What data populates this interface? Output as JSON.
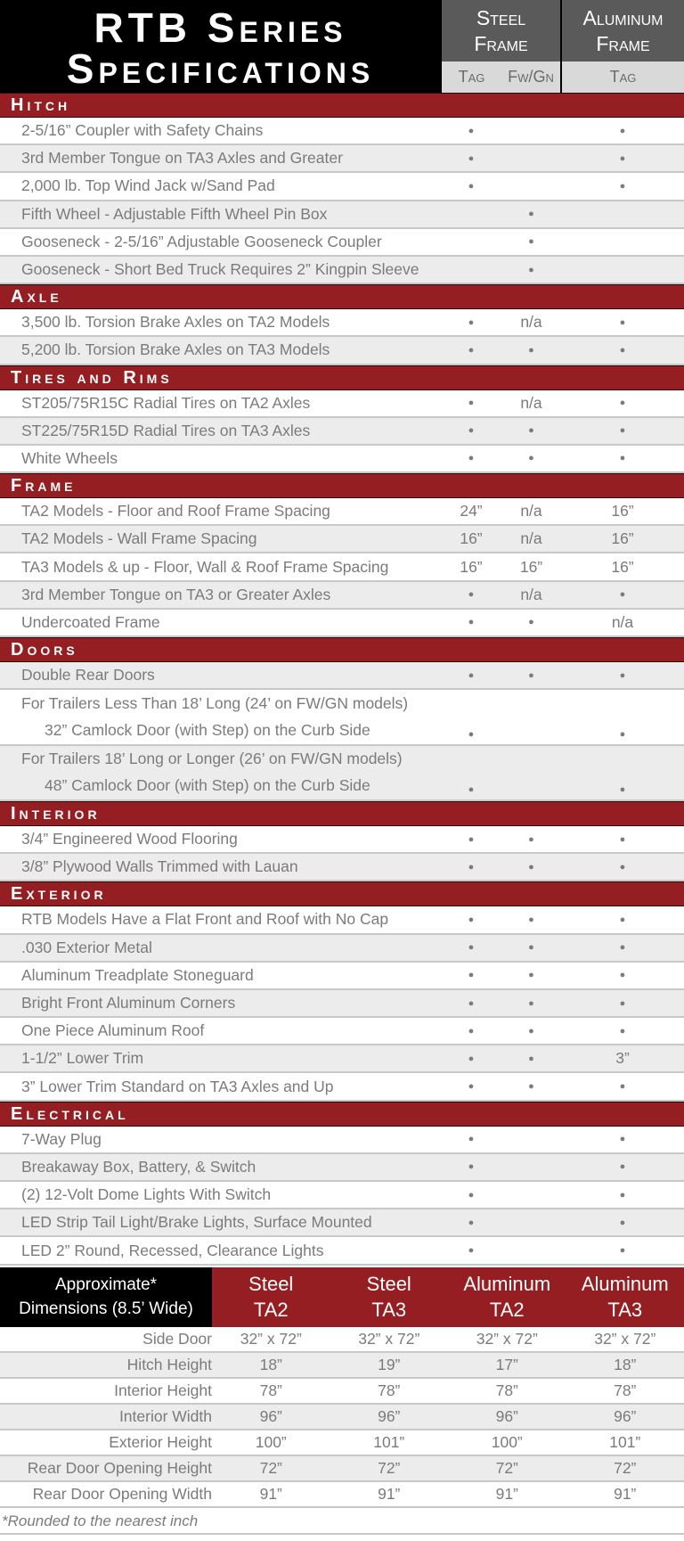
{
  "header": {
    "title_line1": "RTB Series",
    "title_line2": "Specifications",
    "steel_frame": [
      "Steel",
      "Frame"
    ],
    "aluminum_frame": [
      "Aluminum",
      "Frame"
    ],
    "sub_columns": [
      "Tag",
      "Fw/Gn",
      "Tag"
    ]
  },
  "colors": {
    "section_bar": "#951e22",
    "header_bg": "#000000",
    "group_header": "#5a5a5a",
    "sub_header": "#d9d9d9"
  },
  "sections": [
    {
      "title": "Hitch",
      "rows": [
        {
          "label": "2-5/16” Coupler with Safety Chains",
          "values": [
            "●",
            "",
            "●"
          ]
        },
        {
          "label": "3rd Member Tongue on TA3 Axles and Greater",
          "values": [
            "●",
            "",
            "●"
          ]
        },
        {
          "label": "2,000 lb. Top Wind Jack w/Sand Pad",
          "values": [
            "●",
            "",
            "●"
          ]
        },
        {
          "label": "Fifth Wheel - Adjustable Fifth Wheel Pin Box",
          "values": [
            "",
            "●",
            ""
          ]
        },
        {
          "label": "Gooseneck - 2-5/16” Adjustable Gooseneck Coupler",
          "values": [
            "",
            "●",
            ""
          ]
        },
        {
          "label": "Gooseneck - Short Bed Truck Requires 2” Kingpin Sleeve",
          "values": [
            "",
            "●",
            ""
          ]
        }
      ]
    },
    {
      "title": "Axle",
      "rows": [
        {
          "label": "3,500 lb. Torsion Brake Axles on TA2 Models",
          "values": [
            "●",
            "n/a",
            "●"
          ]
        },
        {
          "label": "5,200 lb. Torsion Brake Axles on TA3 Models",
          "values": [
            "●",
            "●",
            "●"
          ]
        }
      ]
    },
    {
      "title": "Tires and Rims",
      "rows": [
        {
          "label": "ST205/75R15C Radial Tires on TA2 Axles",
          "values": [
            "●",
            "n/a",
            "●"
          ]
        },
        {
          "label": "ST225/75R15D Radial Tires on TA3 Axles",
          "values": [
            "●",
            "●",
            "●"
          ]
        },
        {
          "label": "White Wheels",
          "values": [
            "●",
            "●",
            "●"
          ]
        }
      ]
    },
    {
      "title": "Frame",
      "rows": [
        {
          "label": "TA2 Models - Floor  and Roof Frame Spacing",
          "values": [
            "24”",
            "n/a",
            "16”"
          ]
        },
        {
          "label": "TA2 Models - Wall Frame Spacing",
          "values": [
            "16”",
            "n/a",
            "16”"
          ]
        },
        {
          "label": "TA3 Models & up - Floor, Wall & Roof Frame Spacing",
          "values": [
            "16”",
            "16”",
            "16”"
          ]
        },
        {
          "label": "3rd Member Tongue on TA3 or Greater Axles",
          "values": [
            "●",
            "n/a",
            "●"
          ]
        },
        {
          "label": "Undercoated Frame",
          "values": [
            "●",
            "●",
            "n/a"
          ]
        }
      ]
    },
    {
      "title": "Doors",
      "rows": [
        {
          "label": "Double Rear Doors",
          "values": [
            "●",
            "●",
            "●"
          ]
        },
        {
          "label": "For Trailers Less Than 18’ Long (24’ on FW/GN models)",
          "sub_label": "32” Camlock Door (with Step) on the Curb Side",
          "values": [
            "●",
            "",
            "●"
          ]
        },
        {
          "label": "For Trailers 18’ Long or Longer (26’ on FW/GN models)",
          "sub_label": "48” Camlock Door (with Step) on the Curb Side",
          "values": [
            "●",
            "",
            "●"
          ]
        }
      ]
    },
    {
      "title": "Interior",
      "rows": [
        {
          "label": "3/4” Engineered Wood Flooring",
          "values": [
            "●",
            "●",
            "●"
          ]
        },
        {
          "label": "3/8” Plywood Walls Trimmed with Lauan",
          "values": [
            "●",
            "●",
            "●"
          ]
        }
      ]
    },
    {
      "title": "Exterior",
      "rows": [
        {
          "label": "RTB Models Have a Flat Front and Roof with No Cap",
          "values": [
            "●",
            "●",
            "●"
          ]
        },
        {
          "label": ".030 Exterior Metal",
          "values": [
            "●",
            "●",
            "●"
          ]
        },
        {
          "label": "Aluminum Treadplate Stoneguard",
          "values": [
            "●",
            "●",
            "●"
          ]
        },
        {
          "label": "Bright Front Aluminum Corners",
          "values": [
            "●",
            "●",
            "●"
          ]
        },
        {
          "label": "One Piece Aluminum Roof",
          "values": [
            "●",
            "●",
            "●"
          ]
        },
        {
          "label": "1-1/2” Lower Trim",
          "values": [
            "●",
            "●",
            "3”"
          ]
        },
        {
          "label": "3” Lower Trim Standard on TA3 Axles and Up",
          "values": [
            "●",
            "●",
            "●"
          ]
        }
      ]
    },
    {
      "title": "Electrical",
      "rows": [
        {
          "label": "7-Way Plug",
          "values": [
            "●",
            "",
            "●"
          ]
        },
        {
          "label": "Breakaway Box, Battery, & Switch",
          "values": [
            "●",
            "",
            "●"
          ]
        },
        {
          "label": "(2) 12-Volt Dome Lights With Switch",
          "values": [
            "●",
            "",
            "●"
          ]
        },
        {
          "label": "LED Strip Tail Light/Brake Lights, Surface Mounted",
          "values": [
            "●",
            "",
            "●"
          ]
        },
        {
          "label": "LED 2” Round, Recessed, Clearance Lights",
          "values": [
            "●",
            "",
            "●"
          ]
        }
      ]
    }
  ],
  "dimensions": {
    "corner": [
      "Approximate*",
      "Dimensions (8.5’ Wide)"
    ],
    "columns": [
      [
        "Steel",
        "TA2"
      ],
      [
        "Steel",
        "TA3"
      ],
      [
        "Aluminum",
        "TA2"
      ],
      [
        "Aluminum",
        "TA3"
      ]
    ],
    "rows": [
      {
        "label": "Side Door",
        "values": [
          "32” x 72”",
          "32” x 72”",
          "32” x 72”",
          "32” x 72”"
        ]
      },
      {
        "label": "Hitch Height",
        "values": [
          "18”",
          "19”",
          "17”",
          "18”"
        ]
      },
      {
        "label": "Interior Height",
        "values": [
          "78”",
          "78”",
          "78”",
          "78”"
        ]
      },
      {
        "label": "Interior Width",
        "values": [
          "96”",
          "96”",
          "96”",
          "96”"
        ]
      },
      {
        "label": "Exterior Height",
        "values": [
          "100”",
          "101”",
          "100”",
          "101”"
        ]
      },
      {
        "label": "Rear Door Opening Height",
        "values": [
          "72”",
          "72”",
          "72”",
          "72”"
        ]
      },
      {
        "label": "Rear Door Opening Width",
        "values": [
          "91”",
          "91”",
          "91”",
          "91”"
        ]
      }
    ],
    "footnote": "*Rounded to the nearest inch"
  }
}
